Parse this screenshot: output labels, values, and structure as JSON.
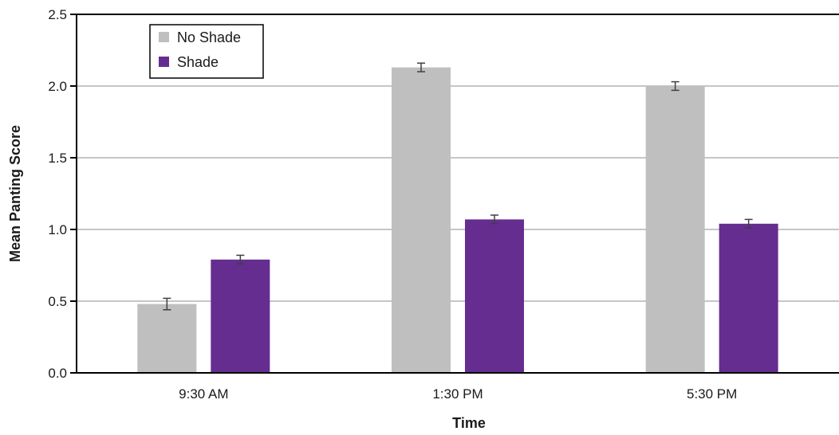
{
  "chart_data": {
    "type": "bar",
    "title": "",
    "xlabel": "Time",
    "ylabel": "Mean Panting Score",
    "categories": [
      "9:30 AM",
      "1:30 PM",
      "5:30 PM"
    ],
    "series": [
      {
        "name": "No Shade",
        "color": "#bfbfbf",
        "values": [
          0.48,
          2.13,
          2.0
        ],
        "errors": [
          0.04,
          0.03,
          0.03
        ]
      },
      {
        "name": "Shade",
        "color": "#662d91",
        "values": [
          0.79,
          1.07,
          1.04
        ],
        "errors": [
          0.03,
          0.03,
          0.03
        ]
      }
    ],
    "ylim": [
      0,
      2.5
    ],
    "yticks": [
      "0.0",
      "0.5",
      "1.0",
      "1.5",
      "2.0",
      "2.5"
    ],
    "grid": true,
    "legend_position": "top-left"
  }
}
